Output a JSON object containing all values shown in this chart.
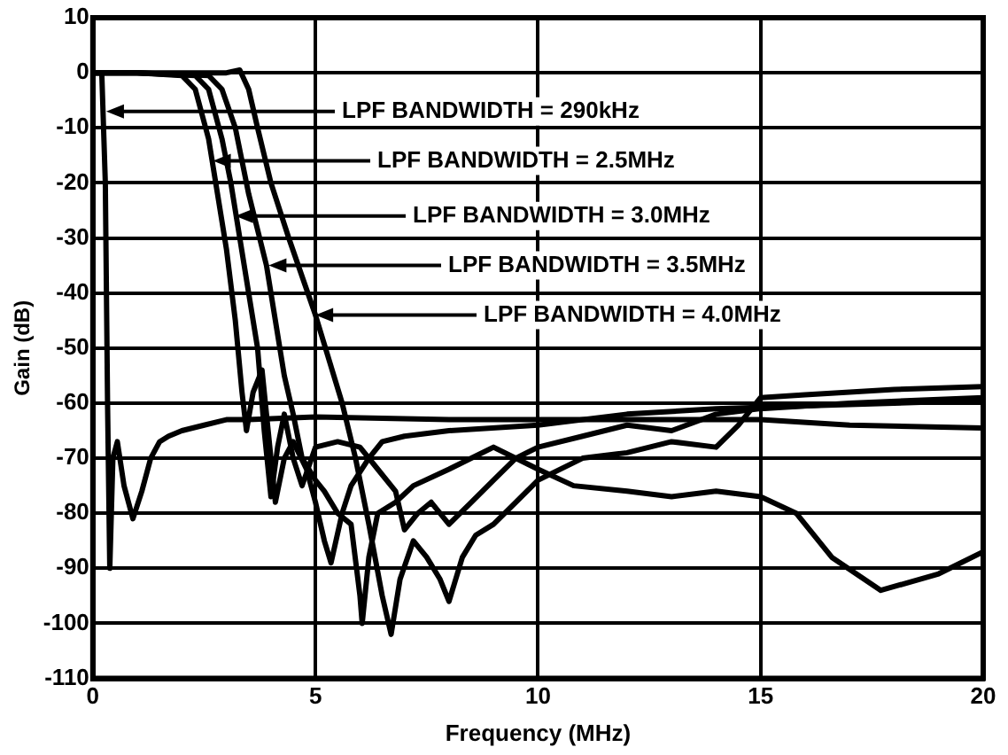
{
  "chart_data": {
    "type": "line",
    "xlabel": "Frequency (MHz)",
    "ylabel": "Gain (dB)",
    "xlim": [
      0,
      20
    ],
    "xticks": [
      0,
      5,
      10,
      15,
      20
    ],
    "ylim": [
      -110,
      10
    ],
    "yticks": [
      -110,
      -100,
      -90,
      -80,
      -70,
      -60,
      -50,
      -40,
      -30,
      -20,
      -10,
      0,
      10
    ],
    "grid": true,
    "legend": false,
    "marker": "none",
    "line_style": "solid",
    "series": [
      {
        "color": "#000000",
        "x": [
          0,
          0.2,
          0.28,
          0.33,
          0.38,
          0.45,
          0.55,
          0.7,
          0.9,
          1.1,
          1.3,
          1.5,
          1.7,
          2,
          2.5,
          3,
          3.5,
          5,
          8,
          10,
          13,
          15,
          17,
          20
        ],
        "values": [
          0,
          0,
          -20,
          -60,
          -90,
          -70,
          -67,
          -75,
          -81,
          -76,
          -70,
          -67,
          -66,
          -65,
          -64,
          -63,
          -63,
          -62.5,
          -63,
          -63,
          -63,
          -63,
          -64,
          -64.5
        ]
      },
      {
        "color": "#000000",
        "x": [
          0,
          1,
          2,
          2.3,
          2.6,
          2.8,
          3,
          3.2,
          3.35,
          3.45,
          3.6,
          3.8,
          4,
          4.1,
          4.3,
          4.5,
          4.8,
          5,
          5.2,
          5.35,
          5.6,
          5.8,
          6.2,
          6.5,
          7,
          8,
          10,
          12,
          14,
          16,
          18,
          20
        ],
        "values": [
          0,
          0,
          -0.5,
          -3,
          -12,
          -22,
          -32,
          -45,
          -58,
          -65,
          -58,
          -54,
          -70,
          -78,
          -70,
          -67,
          -72,
          -78,
          -85,
          -89,
          -80,
          -75,
          -70,
          -67,
          -66,
          -65,
          -64,
          -62,
          -61,
          -60.5,
          -60,
          -59.5
        ]
      },
      {
        "color": "#000000",
        "x": [
          0,
          1,
          2.3,
          2.6,
          2.9,
          3.1,
          3.3,
          3.5,
          3.7,
          3.85,
          4,
          4.15,
          4.3,
          4.5,
          4.7,
          5,
          5.5,
          6,
          6.4,
          6.8,
          7,
          7.3,
          7.6,
          8,
          8.5,
          9,
          9.5,
          10,
          11,
          12,
          13,
          14,
          15,
          17,
          20
        ],
        "values": [
          0,
          0,
          -0.5,
          -3,
          -12,
          -20,
          -30,
          -40,
          -50,
          -65,
          -77,
          -68,
          -62,
          -70,
          -75,
          -68,
          -67,
          -68,
          -72,
          -76,
          -83,
          -80,
          -78,
          -82,
          -78,
          -74,
          -70,
          -68,
          -66,
          -64,
          -65,
          -62,
          -61,
          -60,
          -59
        ]
      },
      {
        "color": "#000000",
        "x": [
          0,
          1,
          2.6,
          2.9,
          3.2,
          3.5,
          3.9,
          4.1,
          4.3,
          4.5,
          4.7,
          5,
          5.2,
          5.5,
          5.8,
          6,
          6.05,
          6.2,
          6.4,
          6.8,
          7.2,
          8,
          9,
          10,
          10.8,
          12,
          13,
          14,
          15,
          15.8,
          16.6,
          17.7,
          19,
          20
        ],
        "values": [
          0,
          0,
          -0.5,
          -3,
          -10,
          -22,
          -35,
          -45,
          -55,
          -62,
          -70,
          -74,
          -76,
          -80,
          -82,
          -95,
          -100,
          -88,
          -80,
          -78,
          -75,
          -72,
          -68,
          -72,
          -75,
          -76,
          -77,
          -76,
          -77,
          -80,
          -88,
          -94,
          -91,
          -87
        ]
      },
      {
        "color": "#000000",
        "x": [
          0,
          1,
          2,
          3,
          3.3,
          3.5,
          3.7,
          4,
          4.4,
          5,
          5.6,
          5.9,
          6.2,
          6.5,
          6.7,
          6.9,
          7.2,
          7.5,
          7.8,
          8,
          8.3,
          8.6,
          9,
          9.5,
          10,
          11,
          12,
          13,
          14,
          14.5,
          15,
          16,
          17,
          18,
          20
        ],
        "values": [
          0,
          0,
          0,
          0,
          0.5,
          -3,
          -10,
          -20,
          -30,
          -44,
          -60,
          -70,
          -82,
          -95,
          -102,
          -92,
          -85,
          -88,
          -92,
          -96,
          -88,
          -84,
          -82,
          -78,
          -74,
          -70,
          -69,
          -67,
          -68,
          -64,
          -59,
          -58.5,
          -58,
          -57.5,
          -57
        ]
      }
    ],
    "annotations": [
      {
        "text": "LPF BANDWIDTH = 290kHz",
        "x": 0.3,
        "y": -7
      },
      {
        "text": "LPF BANDWIDTH = 2.5MHz",
        "x": 2.7,
        "y": -16
      },
      {
        "text": "LPF BANDWIDTH = 3.0MHz",
        "x": 3.2,
        "y": -26
      },
      {
        "text": "LPF BANDWIDTH = 3.5MHz",
        "x": 3.95,
        "y": -35
      },
      {
        "text": "LPF BANDWIDTH = 4.0MHz",
        "x": 5,
        "y": -44
      }
    ]
  }
}
